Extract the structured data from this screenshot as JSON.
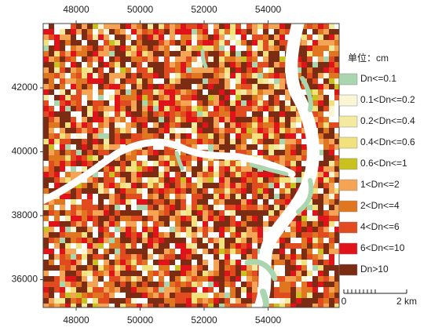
{
  "axes": {
    "top_ticks": [
      48000,
      50000,
      52000,
      54000
    ],
    "bottom_ticks": [
      48000,
      50000,
      52000,
      54000
    ],
    "left_ticks": [
      42000,
      40000,
      38000,
      36000
    ]
  },
  "legend": {
    "title": "单位：cm",
    "items": [
      {
        "label": "Dn<=0.1",
        "color": "#a9d6ae"
      },
      {
        "label": "0.1<Dn<=0.2",
        "color": "#fbf5d6"
      },
      {
        "label": "0.2<Dn<=0.4",
        "color": "#f4ea9f"
      },
      {
        "label": "0.4<Dn<=0.6",
        "color": "#f2e27e"
      },
      {
        "label": "0.6<Dn<=1",
        "color": "#c9c11e"
      },
      {
        "label": "1<Dn<=2",
        "color": "#f5a455"
      },
      {
        "label": "2<Dn<=4",
        "color": "#e0761f"
      },
      {
        "label": "4<Dn<=6",
        "color": "#e24a1f"
      },
      {
        "label": "6<Dn<=10",
        "color": "#e0121a"
      },
      {
        "label": "Dn>10",
        "color": "#7b2c12"
      }
    ]
  },
  "scale_bar": {
    "start": "0",
    "end": "2 km"
  }
}
